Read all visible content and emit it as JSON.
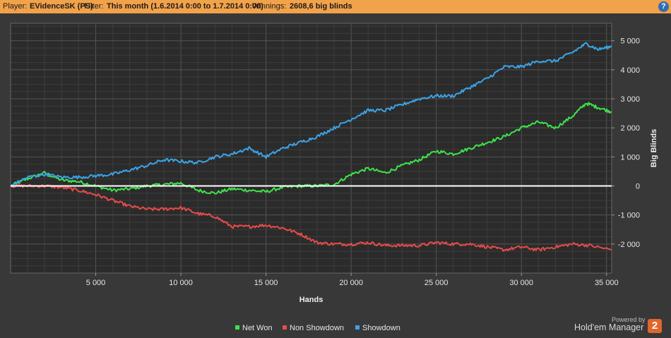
{
  "header": {
    "player_label": "Player:",
    "player_value": "EVidenceSK (PS)",
    "filter_label": "Filter:",
    "filter_value": "This month (1.6.2014 0:00 to 1.7.2014 0:00)",
    "winnings_label": "Winnings:",
    "winnings_value": "2608,6 big blinds",
    "help_glyph": "?"
  },
  "branding": {
    "powered_by": "Powered by",
    "product": "Hold'em Manager",
    "logo_text": "2"
  },
  "colors": {
    "header_bg": "#f2a24a",
    "plot_bg": "#2b2b2b",
    "zero_line": "#ffffff"
  },
  "chart_data": {
    "type": "line",
    "xlabel": "Hands",
    "ylabel": "Big Blinds",
    "xlim": [
      0,
      35300
    ],
    "ylim": [
      -3000,
      5600
    ],
    "xticks": [
      5000,
      10000,
      15000,
      20000,
      25000,
      30000,
      35000
    ],
    "xtick_labels": [
      "5 000",
      "10 000",
      "15 000",
      "20 000",
      "25 000",
      "30 000",
      "35 000"
    ],
    "yticks": [
      -2000,
      -1000,
      0,
      1000,
      2000,
      3000,
      4000,
      5000
    ],
    "ytick_labels": [
      "-2 000",
      "-1 000",
      "0",
      "1 000",
      "2 000",
      "3 000",
      "4 000",
      "5 000"
    ],
    "grid": true,
    "legend_position": "bottom",
    "series": [
      {
        "name": "Net Won",
        "color": "#3ee34a",
        "x": [
          0,
          1000,
          2000,
          3000,
          4000,
          5000,
          6000,
          7000,
          8000,
          9000,
          10000,
          11000,
          12000,
          13000,
          14000,
          15000,
          16000,
          17000,
          18000,
          19000,
          20000,
          21000,
          22000,
          23000,
          24000,
          25000,
          26000,
          27000,
          28000,
          29000,
          30000,
          31000,
          32000,
          33000,
          33800,
          34500,
          35300
        ],
        "values": [
          0,
          250,
          450,
          200,
          150,
          0,
          -150,
          -100,
          0,
          50,
          100,
          -150,
          -250,
          -100,
          -150,
          -200,
          -50,
          0,
          0,
          50,
          400,
          600,
          450,
          700,
          900,
          1200,
          1100,
          1300,
          1500,
          1700,
          2000,
          2200,
          2000,
          2400,
          2850,
          2700,
          2550
        ]
      },
      {
        "name": "Non Showdown",
        "color": "#e84a4a",
        "x": [
          0,
          1000,
          2000,
          3000,
          4000,
          5000,
          6000,
          7000,
          8000,
          9000,
          10000,
          11000,
          12000,
          13000,
          14000,
          15000,
          16000,
          17000,
          18000,
          19000,
          20000,
          21000,
          22000,
          23000,
          24000,
          25000,
          26000,
          27000,
          28000,
          29000,
          30000,
          31000,
          32000,
          33000,
          34000,
          35300
        ],
        "values": [
          0,
          0,
          0,
          -50,
          -150,
          -300,
          -500,
          -700,
          -800,
          -800,
          -750,
          -950,
          -1050,
          -1400,
          -1400,
          -1350,
          -1450,
          -1650,
          -1950,
          -2000,
          -2000,
          -1950,
          -2050,
          -2050,
          -2050,
          -1950,
          -2000,
          -2000,
          -2100,
          -2200,
          -2100,
          -2200,
          -2100,
          -2000,
          -2050,
          -2200
        ]
      },
      {
        "name": "Showdown",
        "color": "#3ba3e6",
        "x": [
          0,
          1000,
          2000,
          3000,
          4000,
          5000,
          6000,
          7000,
          8000,
          9000,
          10000,
          11000,
          12000,
          13000,
          14000,
          15000,
          16000,
          17000,
          18000,
          19000,
          20000,
          21000,
          22000,
          23000,
          24000,
          25000,
          26000,
          27000,
          28000,
          29000,
          30000,
          31000,
          32000,
          33000,
          33800,
          34500,
          35300
        ],
        "values": [
          0,
          300,
          400,
          300,
          300,
          350,
          400,
          550,
          700,
          900,
          850,
          800,
          1000,
          1100,
          1300,
          1000,
          1300,
          1500,
          1700,
          2000,
          2300,
          2600,
          2600,
          2800,
          3000,
          3100,
          3100,
          3400,
          3700,
          4100,
          4100,
          4300,
          4300,
          4600,
          4900,
          4700,
          4800
        ]
      }
    ]
  }
}
